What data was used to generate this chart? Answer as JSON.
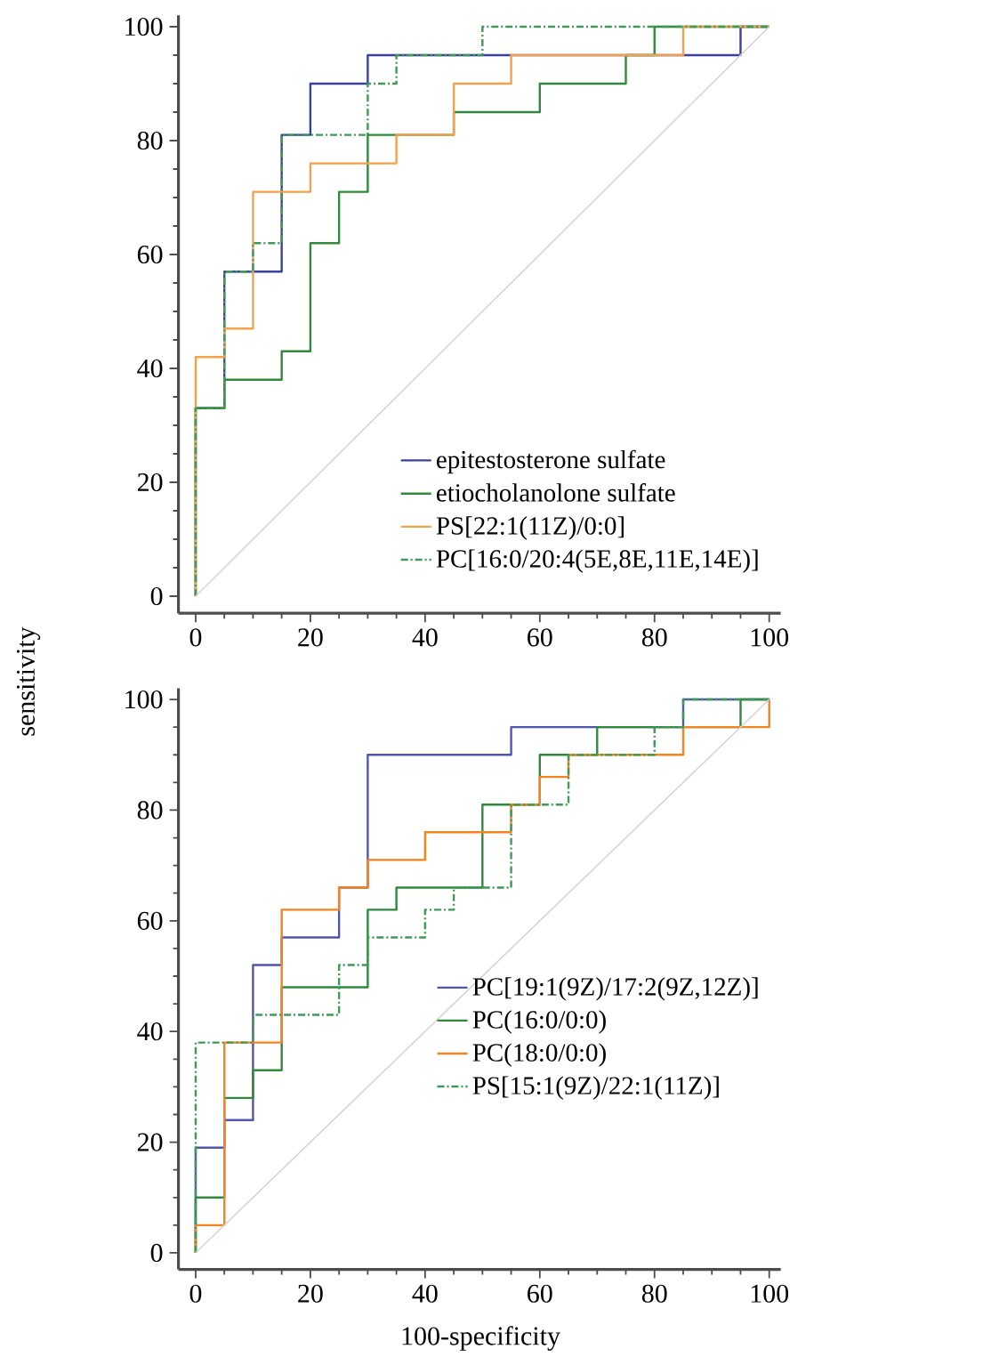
{
  "chart_data": [
    {
      "type": "line",
      "ylabel": "sensitivity",
      "xlim": [
        -3,
        102
      ],
      "ylim": [
        -3,
        102
      ],
      "xticks": [
        0,
        20,
        40,
        60,
        80,
        100
      ],
      "yticks": [
        0,
        20,
        40,
        60,
        80,
        100
      ],
      "legend": "bottom right",
      "series": [
        {
          "name": "epitestosterone sulfate",
          "color": "#3a40a0",
          "line_style": "solid",
          "x": [
            0,
            0,
            5,
            5,
            15,
            15,
            20,
            20,
            30,
            30,
            95,
            95,
            100
          ],
          "values": [
            0,
            33,
            33,
            57,
            57,
            81,
            81,
            90,
            90,
            95,
            95,
            100,
            100
          ]
        },
        {
          "name": "etiocholanolone sulfate",
          "color": "#2e8b3e",
          "line_style": "solid",
          "x": [
            0,
            0,
            5,
            5,
            15,
            15,
            20,
            20,
            25,
            25,
            30,
            30,
            45,
            45,
            60,
            60,
            75,
            75,
            80,
            80,
            100
          ],
          "values": [
            0,
            33,
            33,
            38,
            38,
            43,
            43,
            62,
            62,
            71,
            71,
            81,
            81,
            85,
            85,
            90,
            90,
            95,
            95,
            100,
            100
          ]
        },
        {
          "name": "PS[22:1(11Z)/0:0]",
          "color": "#f5a04a",
          "line_style": "solid",
          "x": [
            0,
            0,
            5,
            5,
            10,
            10,
            20,
            20,
            35,
            35,
            45,
            45,
            55,
            55,
            85,
            85,
            100
          ],
          "values": [
            0,
            42,
            42,
            47,
            47,
            71,
            71,
            76,
            76,
            81,
            81,
            90,
            90,
            95,
            95,
            100,
            100
          ]
        },
        {
          "name": "PC[16:0/20:4(5E,8E,11E,14E)]",
          "color": "#3f9a55",
          "line_style": "dashdot",
          "x": [
            0,
            0,
            5,
            5,
            10,
            10,
            15,
            15,
            30,
            30,
            35,
            35,
            50,
            50,
            100
          ],
          "values": [
            0,
            33,
            33,
            57,
            57,
            62,
            62,
            81,
            81,
            90,
            90,
            95,
            95,
            100,
            100
          ]
        },
        {
          "color": "#d9d4d4",
          "line_style": "solid",
          "x": [
            0,
            100
          ],
          "values": [
            0,
            100
          ]
        }
      ]
    },
    {
      "type": "line",
      "xlabel": "100-specificity",
      "xlim": [
        -3,
        102
      ],
      "ylim": [
        -3,
        102
      ],
      "xticks": [
        0,
        20,
        40,
        60,
        80,
        100
      ],
      "yticks": [
        0,
        20,
        40,
        60,
        80,
        100
      ],
      "legend": "right",
      "series": [
        {
          "name": "PC[19:1(9Z)/17:2(9Z,12Z)]",
          "color": "#5055b0",
          "line_style": "solid",
          "x": [
            0,
            0,
            5,
            5,
            10,
            10,
            15,
            15,
            25,
            25,
            30,
            30,
            55,
            55,
            85,
            85,
            100
          ],
          "values": [
            0,
            19,
            19,
            24,
            24,
            52,
            52,
            57,
            57,
            66,
            66,
            90,
            90,
            95,
            95,
            100,
            100
          ]
        },
        {
          "name": "PC(16:0/0:0)",
          "color": "#2e8b3e",
          "line_style": "solid",
          "x": [
            0,
            0,
            5,
            5,
            10,
            10,
            15,
            15,
            30,
            30,
            35,
            35,
            50,
            50,
            60,
            60,
            70,
            70,
            95,
            95,
            100
          ],
          "values": [
            0,
            10,
            10,
            28,
            28,
            33,
            33,
            48,
            48,
            62,
            62,
            66,
            66,
            81,
            81,
            90,
            90,
            95,
            95,
            100,
            100
          ]
        },
        {
          "name": "PC(18:0/0:0)",
          "color": "#f5841f",
          "line_style": "solid",
          "x": [
            0,
            0,
            5,
            5,
            15,
            15,
            25,
            25,
            30,
            30,
            40,
            40,
            55,
            55,
            60,
            60,
            65,
            65,
            85,
            85,
            100,
            100
          ],
          "values": [
            0,
            5,
            5,
            38,
            38,
            62,
            62,
            66,
            66,
            71,
            71,
            76,
            76,
            81,
            81,
            86,
            86,
            90,
            90,
            95,
            95,
            100
          ]
        },
        {
          "name": "PS[15:1(9Z)/22:1(11Z)]",
          "color": "#3f9a55",
          "line_style": "dashdot",
          "x": [
            0,
            0,
            10,
            10,
            25,
            25,
            30,
            30,
            40,
            40,
            45,
            45,
            55,
            55,
            65,
            65,
            80,
            80,
            85,
            85,
            100
          ],
          "values": [
            0,
            38,
            38,
            43,
            43,
            52,
            52,
            57,
            57,
            62,
            62,
            66,
            66,
            81,
            81,
            90,
            90,
            95,
            95,
            100,
            100
          ]
        },
        {
          "color": "#d9d4d4",
          "line_style": "solid",
          "x": [
            0,
            100
          ],
          "values": [
            0,
            100
          ]
        }
      ]
    }
  ]
}
